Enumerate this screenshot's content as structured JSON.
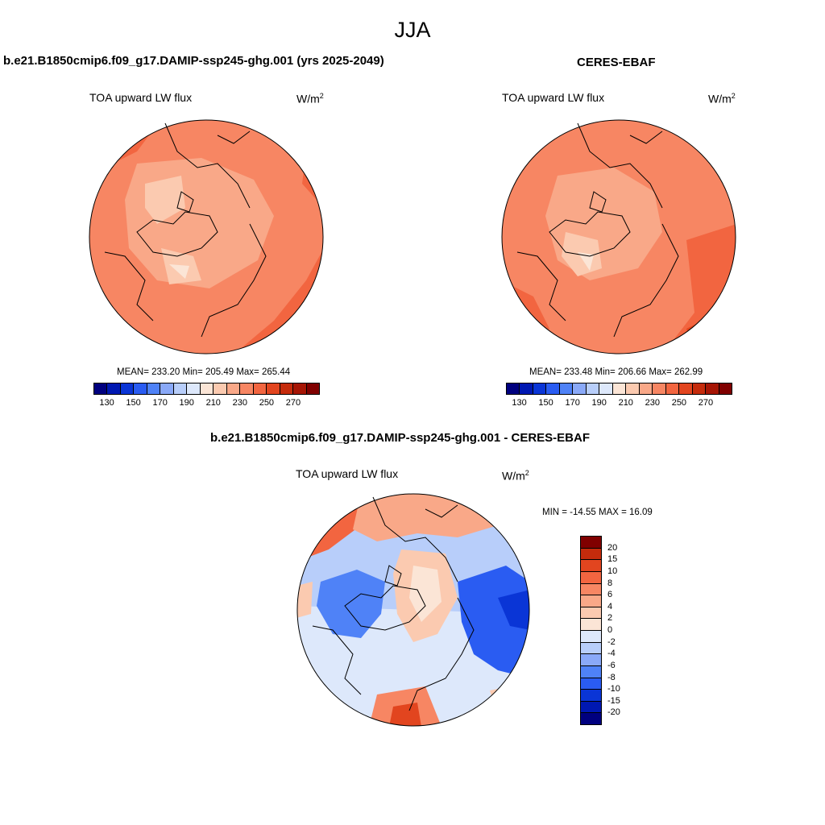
{
  "figure": {
    "season": "JJA"
  },
  "panels": [
    {
      "id": "model",
      "title": "b.e21.B1850cmip6.f09_g17.DAMIP-ssp245-ghg.001 (yrs 2025-2049)",
      "left_label": "TOA upward LW flux",
      "units_base": "W/m",
      "units_sup": "2",
      "stats": "MEAN= 233.20  Min= 205.49  Max= 265.44"
    },
    {
      "id": "obs",
      "title": "CERES-EBAF",
      "left_label": "TOA upward LW flux",
      "units_base": "W/m",
      "units_sup": "2",
      "stats": "MEAN= 233.48  Min= 206.66  Max= 262.99"
    },
    {
      "id": "diff",
      "title": "b.e21.B1850cmip6.f09_g17.DAMIP-ssp245-ghg.001 - CERES-EBAF",
      "left_label": "TOA upward LW flux",
      "units_base": "W/m",
      "units_sup": "2",
      "stats": "MIN = -14.55 MAX =  16.09"
    }
  ],
  "colorbars": {
    "abs": {
      "colors": [
        "#00007f",
        "#0018b2",
        "#0a35d6",
        "#2a5cf2",
        "#4f82f7",
        "#8aa9f8",
        "#b8cefa",
        "#dde8fb",
        "#fbe5d6",
        "#fbcab0",
        "#f9a888",
        "#f78663",
        "#f26540",
        "#e2451f",
        "#c52b0c",
        "#a61505",
        "#800000"
      ],
      "ticks": [
        "130",
        "150",
        "170",
        "190",
        "210",
        "230",
        "250",
        "270"
      ]
    },
    "diff": {
      "colors": [
        "#00007f",
        "#0018b2",
        "#0a35d6",
        "#2a5cf2",
        "#4f82f7",
        "#8aa9f8",
        "#b8cefa",
        "#dde8fb",
        "#fbe5d6",
        "#fbcab0",
        "#f9a888",
        "#f78663",
        "#f26540",
        "#e2451f",
        "#c52b0c",
        "#800000"
      ],
      "ticks": [
        "-20",
        "-15",
        "-10",
        "-8",
        "-6",
        "-4",
        "-2",
        "0",
        "2",
        "4",
        "6",
        "8",
        "10",
        "15",
        "20"
      ]
    }
  }
}
